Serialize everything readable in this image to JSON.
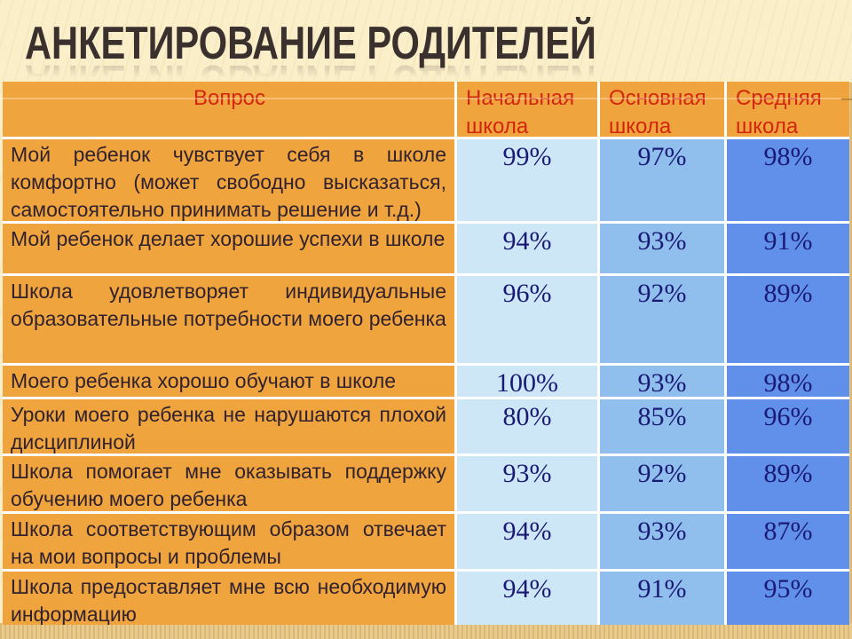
{
  "slide": {
    "title": "АНКЕТИРОВАНИЕ РОДИТЕЛЕЙ"
  },
  "table": {
    "headers": [
      "Вопрос",
      "Начальная школа",
      "Основная школа",
      "Средняя школа"
    ],
    "rows": [
      {
        "question": "Мой ребенок чувствует себя в школе комфортно (может свободно высказаться, самостоятельно принимать решение и т.д.)",
        "values": [
          "99%",
          "97%",
          "98%"
        ]
      },
      {
        "question": "Мой ребенок делает хорошие успехи в школе",
        "values": [
          "94%",
          "93%",
          "91%"
        ]
      },
      {
        "question": "Школа удовлетворяет индивидуальные образовательные потребности моего ребенка",
        "values": [
          "96%",
          "92%",
          "89%"
        ]
      },
      {
        "question": "Моего ребенка хорошо обучают в школе",
        "values": [
          "100%",
          "93%",
          "98%"
        ]
      },
      {
        "question": "Уроки моего ребенка не нарушаются плохой дисциплиной",
        "values": [
          "80%",
          "85%",
          "96%"
        ]
      },
      {
        "question": "Школа помогает мне оказывать поддержку обучению моего ребенка",
        "values": [
          "93%",
          "92%",
          "89%"
        ]
      },
      {
        "question": "Школа соответствующим образом отвечает на мои вопросы и проблемы",
        "values": [
          "94%",
          "93%",
          "87%"
        ]
      },
      {
        "question": "Школа предоставляет мне всю необходимую информацию",
        "values": [
          "94%",
          "91%",
          "95%"
        ]
      }
    ]
  },
  "colors": {
    "page_background": "#FBEFCA",
    "table_orange": "#EFA43E",
    "header_text_red": "#D3250C",
    "question_text": "#31222E",
    "value_text_navy": "#1A1A75",
    "col_primary_blue": "#CEE7F6",
    "col_basic_blue": "#90BFEE",
    "col_secondary_blue": "#6090EA",
    "title_text": "#3A312F",
    "edge_band_tan": "#E2C285"
  }
}
